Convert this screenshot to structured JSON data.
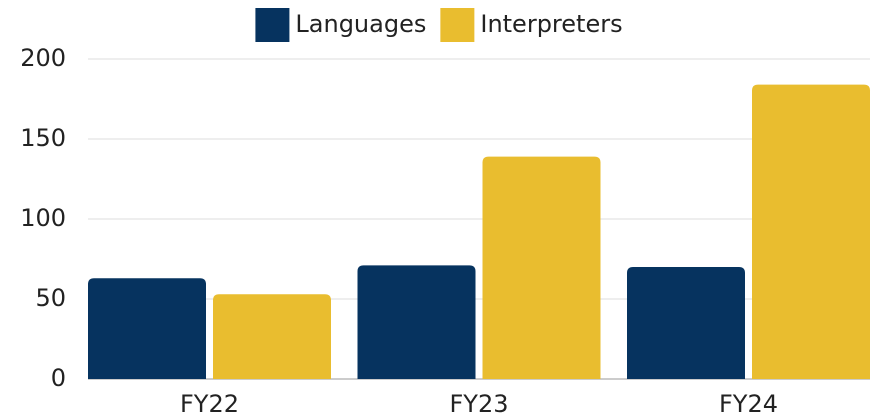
{
  "chart_data": {
    "type": "bar",
    "categories": [
      "FY22",
      "FY23",
      "FY24"
    ],
    "series": [
      {
        "name": "Languages",
        "color": "#06335f",
        "values": [
          63,
          71,
          70
        ]
      },
      {
        "name": "Interpreters",
        "color": "#e9bd2f",
        "values": [
          53,
          139,
          184
        ]
      }
    ],
    "ylim": [
      0,
      200
    ],
    "yticks": [
      0,
      50,
      100,
      150,
      200
    ],
    "grid": true,
    "legend": "top"
  }
}
